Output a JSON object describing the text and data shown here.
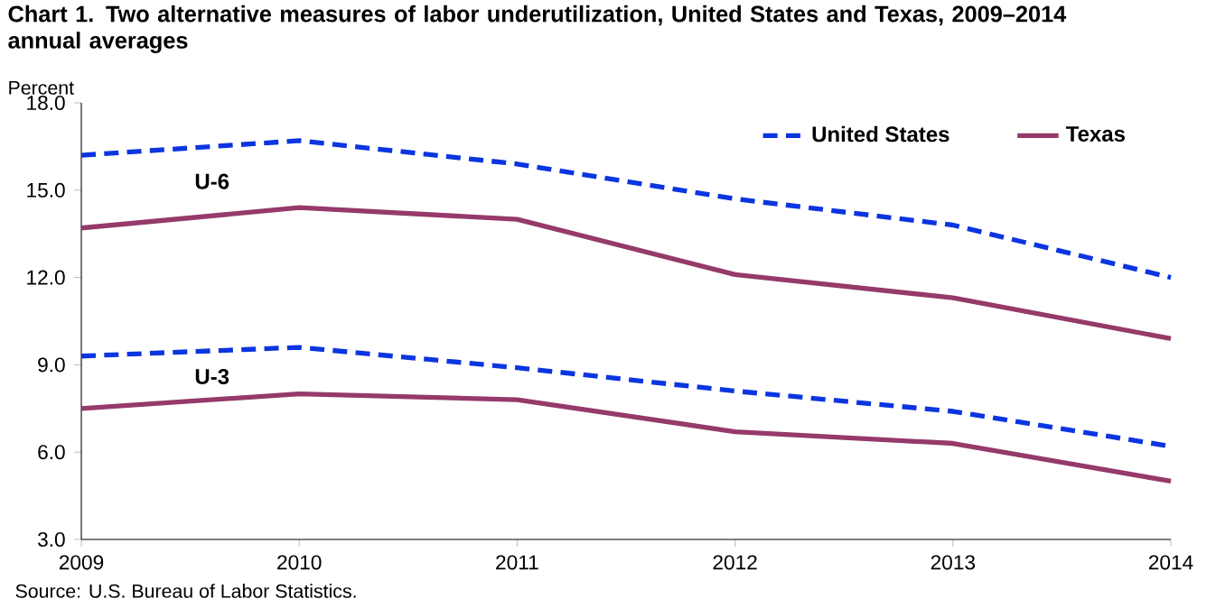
{
  "chart_data": {
    "type": "line",
    "title": "Chart 1. Two alternative measures of labor underutilization, United States and Texas, 2009–2014  annual averages",
    "ylabel": "Percent",
    "x": [
      2009,
      2010,
      2011,
      2012,
      2013,
      2014
    ],
    "xlim": [
      2009,
      2014
    ],
    "xticks": [
      2009,
      2010,
      2011,
      2012,
      2013,
      2014
    ],
    "ylim": [
      3,
      18
    ],
    "yticks": [
      {
        "value": 3,
        "label": "3.0"
      },
      {
        "value": 6,
        "label": "6.0"
      },
      {
        "value": 9,
        "label": "9.0"
      },
      {
        "value": 12,
        "label": "12.0"
      },
      {
        "value": 15,
        "label": "15.0"
      },
      {
        "value": 18,
        "label": "18.0"
      }
    ],
    "series": [
      {
        "name": "United States",
        "color": "#0b35e0",
        "line_style": "dashed",
        "values": [
          16.2,
          16.7,
          15.9,
          14.7,
          13.8,
          12.0
        ]
      },
      {
        "name": "Texas",
        "color": "#953a6a",
        "line_style": "solid",
        "values": [
          13.7,
          14.4,
          14.0,
          12.1,
          11.3,
          9.9
        ]
      },
      {
        "color": "#0b35e0",
        "line_style": "dashed",
        "values": [
          9.3,
          9.6,
          8.9,
          8.1,
          7.4,
          6.2
        ]
      },
      {
        "color": "#953a6a",
        "line_style": "solid",
        "values": [
          7.5,
          8.0,
          7.8,
          6.7,
          6.3,
          5.0
        ]
      }
    ],
    "annotations": [
      "U-6",
      "U-3",
      "Source: U.S. Bureau of Labor Statistics."
    ],
    "grid": false,
    "legend": "top right",
    "marker": "none"
  }
}
